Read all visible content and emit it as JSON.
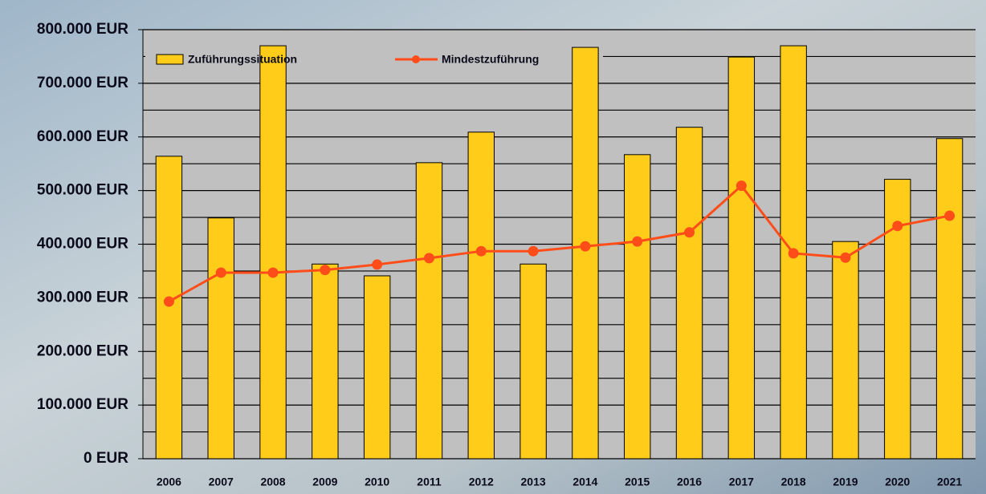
{
  "chart_data": {
    "type": "bar_line",
    "categories": [
      "2006",
      "2007",
      "2008",
      "2009",
      "2010",
      "2011",
      "2012",
      "2013",
      "2014",
      "2015",
      "2016",
      "2017",
      "2018",
      "2019",
      "2020",
      "2021"
    ],
    "series": [
      {
        "name": "Zuführungssituation",
        "type": "bar",
        "color": "#ffcc1a",
        "values": [
          564000,
          449000,
          770000,
          363000,
          341000,
          552000,
          609000,
          363000,
          767000,
          567000,
          618000,
          749000,
          770000,
          405000,
          521000,
          597000
        ]
      },
      {
        "name": "Mindestzuführung",
        "type": "line",
        "color": "#ff4d1a",
        "values": [
          293000,
          347000,
          347000,
          352000,
          362000,
          374000,
          387000,
          387000,
          396000,
          405000,
          422000,
          509000,
          383000,
          375000,
          434000,
          453000
        ]
      }
    ],
    "ylim": [
      0,
      800000
    ],
    "yticks": [
      {
        "value": 0,
        "label": "0 EUR"
      },
      {
        "value": 100000,
        "label": "100.000 EUR"
      },
      {
        "value": 200000,
        "label": "200.000 EUR"
      },
      {
        "value": 300000,
        "label": "300.000 EUR"
      },
      {
        "value": 400000,
        "label": "400.000 EUR"
      },
      {
        "value": 500000,
        "label": "500.000 EUR"
      },
      {
        "value": 600000,
        "label": "600.000 EUR"
      },
      {
        "value": 700000,
        "label": "700.000 EUR"
      },
      {
        "value": 800000,
        "label": "800.000 EUR"
      }
    ],
    "minor_yticks": [
      50000,
      150000,
      250000,
      350000,
      450000,
      550000,
      650000,
      750000
    ],
    "grid": true
  }
}
